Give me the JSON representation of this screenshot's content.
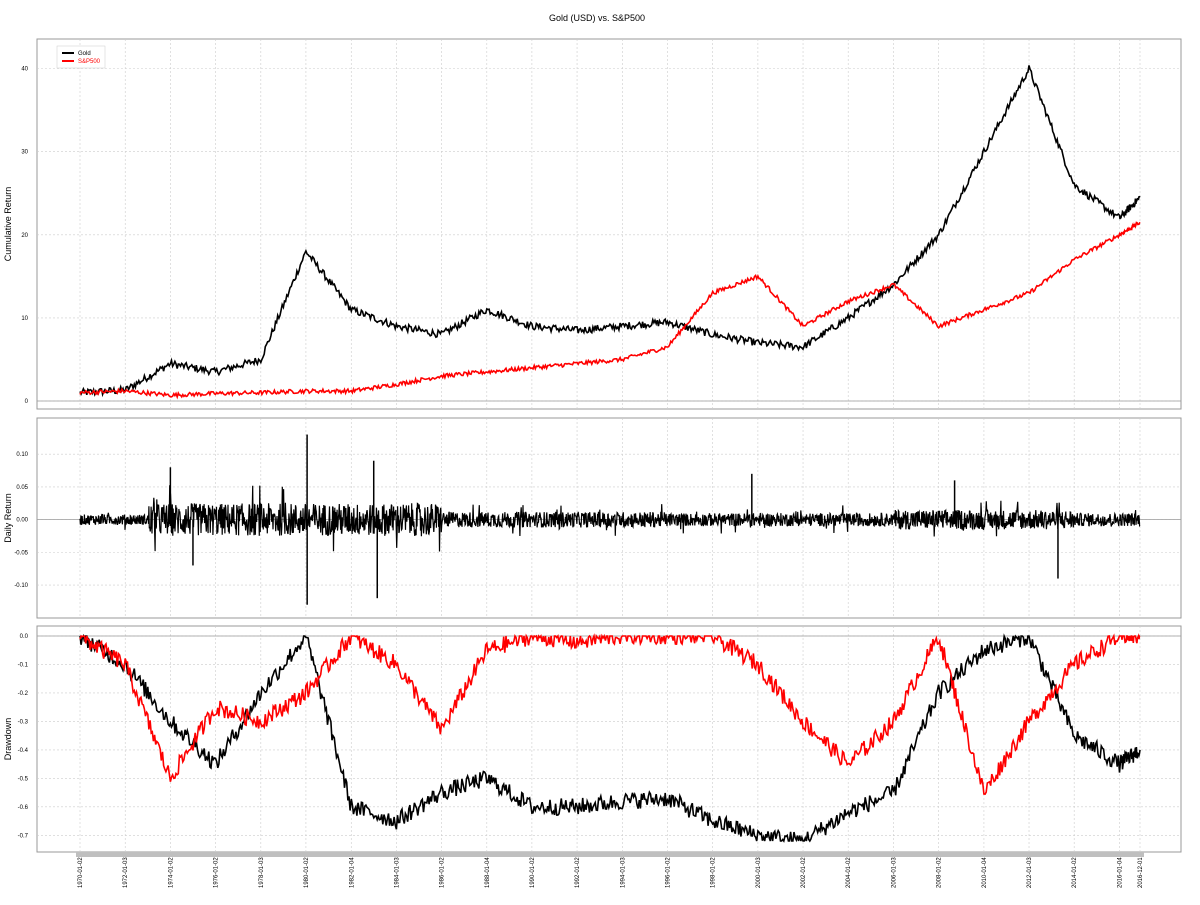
{
  "chart_data": {
    "title": "Gold (USD) vs. S&P500",
    "type": "line",
    "x_dates": [
      "1970-01-02",
      "1972-01-03",
      "1974-01-02",
      "1976-01-02",
      "1978-01-03",
      "1980-01-02",
      "1982-01-04",
      "1984-01-03",
      "1986-01-02",
      "1988-01-04",
      "1990-01-02",
      "1992-01-02",
      "1994-01-03",
      "1996-01-02",
      "1998-01-02",
      "2000-01-03",
      "2002-01-02",
      "2004-01-02",
      "2006-01-03",
      "2008-01-02",
      "2010-01-04",
      "2012-01-03",
      "2014-01-02",
      "2016-01-04",
      "2016-12-01"
    ],
    "x_ticks": [
      "1970-01-02",
      "1972-01-03",
      "1974-01-02",
      "1976-01-02",
      "1978-01-03",
      "1980-01-02",
      "1982-01-04",
      "1984-01-03",
      "1986-01-02",
      "1988-01-04",
      "1990-01-02",
      "1992-01-02",
      "1994-01-03",
      "1996-01-02",
      "1998-01-02",
      "2000-01-03",
      "2002-01-02",
      "2004-01-02",
      "2006-01-03",
      "2008-01-02",
      "2010-01-04",
      "2012-01-03",
      "2014-01-02",
      "2016-01-04",
      "2016-12-01"
    ],
    "legend": {
      "position": "top-left",
      "entries": [
        {
          "name": "Gold",
          "color": "#000000"
        },
        {
          "name": "S&P500",
          "color": "#ff0000"
        }
      ]
    },
    "panels": [
      {
        "ylabel": "Cumulative Return",
        "ylim": [
          0,
          42
        ],
        "yticks": [
          "0",
          "10",
          "20",
          "30",
          "40"
        ],
        "series": [
          {
            "name": "Gold",
            "color": "#000000",
            "values": [
              1.0,
              1.3,
              4.5,
              3.5,
              5.0,
              18.0,
              11.0,
              9.0,
              8.0,
              11.0,
              9.0,
              8.5,
              9.0,
              9.5,
              8.0,
              7.0,
              6.5,
              10.0,
              14.0,
              20.0,
              30.0,
              40.0,
              26.0,
              22.0,
              24.5
            ]
          },
          {
            "name": "S&P500",
            "color": "#ff0000",
            "values": [
              1.0,
              1.2,
              0.7,
              0.9,
              1.0,
              1.2,
              1.2,
              2.0,
              3.0,
              3.5,
              4.0,
              4.5,
              5.0,
              6.5,
              13.0,
              15.0,
              9.0,
              12.0,
              14.0,
              9.0,
              11.0,
              13.0,
              17.0,
              20.0,
              21.5
            ]
          }
        ]
      },
      {
        "ylabel": "Daily Return",
        "ylim": [
          -0.135,
          0.14
        ],
        "yticks": [
          "-0.10",
          "-0.05",
          "0.00",
          "0.05",
          "0.10"
        ],
        "series": [
          {
            "name": "Gold",
            "color": "#000000",
            "spikes": [
              {
                "date": "1974-01-02",
                "value": 0.08
              },
              {
                "date": "1975-01-02",
                "value": -0.07
              },
              {
                "date": "1980-01-21",
                "value": 0.13
              },
              {
                "date": "1980-01-22",
                "value": -0.13
              },
              {
                "date": "1983-02-28",
                "value": -0.12
              },
              {
                "date": "1983-01-02",
                "value": 0.09
              },
              {
                "date": "1999-09-27",
                "value": 0.07
              },
              {
                "date": "2008-09-17",
                "value": 0.06
              },
              {
                "date": "2013-04-15",
                "value": -0.09
              }
            ]
          }
        ]
      },
      {
        "ylabel": "Drawdown",
        "ylim": [
          -0.72,
          0.0
        ],
        "yticks": [
          "-0.7",
          "-0.6",
          "-0.5",
          "-0.4",
          "-0.3",
          "-0.2",
          "-0.1",
          "0.0"
        ],
        "series": [
          {
            "name": "Gold",
            "color": "#000000",
            "values": [
              0.0,
              -0.1,
              -0.3,
              -0.45,
              -0.2,
              0.0,
              -0.6,
              -0.65,
              -0.55,
              -0.5,
              -0.6,
              -0.6,
              -0.58,
              -0.57,
              -0.65,
              -0.7,
              -0.72,
              -0.62,
              -0.55,
              -0.2,
              -0.05,
              0.0,
              -0.35,
              -0.45,
              -0.4
            ]
          },
          {
            "name": "S&P500",
            "color": "#ff0000",
            "values": [
              0.0,
              -0.1,
              -0.5,
              -0.25,
              -0.3,
              -0.2,
              0.0,
              -0.1,
              -0.33,
              -0.05,
              0.0,
              -0.02,
              0.0,
              0.0,
              0.0,
              -0.1,
              -0.3,
              -0.45,
              -0.3,
              0.0,
              -0.55,
              -0.3,
              -0.1,
              0.0,
              0.0
            ]
          }
        ]
      }
    ],
    "grid": true
  }
}
